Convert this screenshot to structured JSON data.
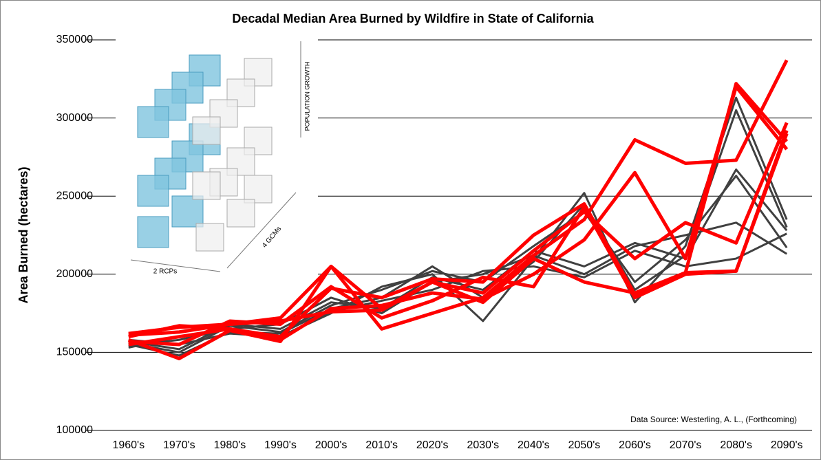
{
  "chart_data": {
    "type": "line",
    "title": "Decadal Median Area Burned by Wildfire in State of California",
    "y_label": "Area Burned (hectares)",
    "annotation": "Data Source: Westerling, A. L., (Forthcoming)",
    "inset_labels": [
      "POPULATION GROWTH",
      "2 RCPs",
      "4 GCMs"
    ],
    "categories": [
      "1960's",
      "1970's",
      "1980's",
      "1990's",
      "2000's",
      "2010's",
      "2020's",
      "2030's",
      "2040's",
      "2050's",
      "2060's",
      "2070's",
      "2080's",
      "2090's"
    ],
    "ylim": [
      100000,
      350000
    ],
    "yticks": [
      100000,
      150000,
      200000,
      250000,
      300000,
      350000
    ],
    "grid": true,
    "series": [
      {
        "color": "#404040",
        "values": [
          153000,
          160000,
          165000,
          160000,
          175000,
          192000,
          200000,
          170000,
          210000,
          252000,
          182000,
          218000,
          313000,
          235000
        ]
      },
      {
        "color": "#404040",
        "values": [
          155000,
          148000,
          163000,
          162000,
          178000,
          185000,
          205000,
          185000,
          208000,
          245000,
          190000,
          212000,
          305000,
          230000
        ]
      },
      {
        "color": "#404040",
        "values": [
          157000,
          152000,
          168000,
          165000,
          182000,
          178000,
          198000,
          190000,
          215000,
          205000,
          220000,
          210000,
          267000,
          228000
        ]
      },
      {
        "color": "#404040",
        "values": [
          154000,
          158000,
          165000,
          168000,
          185000,
          175000,
          195000,
          200000,
          212000,
          200000,
          218000,
          225000,
          233000,
          213000
        ]
      },
      {
        "color": "#404040",
        "values": [
          156000,
          150000,
          167000,
          163000,
          180000,
          190000,
          202000,
          195000,
          218000,
          240000,
          195000,
          222000,
          263000,
          217000
        ]
      },
      {
        "color": "#404040",
        "values": [
          158000,
          155000,
          162000,
          160000,
          176000,
          183000,
          190000,
          202000,
          205000,
          198000,
          215000,
          205000,
          210000,
          226000
        ]
      },
      {
        "color": "#ff0000",
        "values": [
          162000,
          166000,
          168000,
          172000,
          205000,
          165000,
          175000,
          185000,
          212000,
          235000,
          286000,
          271000,
          273000,
          337000
        ]
      },
      {
        "color": "#ff0000",
        "values": [
          158000,
          146000,
          164000,
          157000,
          205000,
          178000,
          195000,
          188000,
          215000,
          240000,
          210000,
          233000,
          220000,
          297000
        ]
      },
      {
        "color": "#ff0000",
        "values": [
          155000,
          160000,
          165000,
          160000,
          191000,
          185000,
          197000,
          195000,
          225000,
          245000,
          187000,
          201000,
          322000,
          285000
        ]
      },
      {
        "color": "#ff0000",
        "values": [
          160000,
          167000,
          165000,
          158000,
          178000,
          180000,
          188000,
          184000,
          200000,
          222000,
          265000,
          210000,
          320000,
          280000
        ]
      },
      {
        "color": "#ff0000",
        "values": [
          157000,
          155000,
          170000,
          168000,
          192000,
          172000,
          183000,
          198000,
          192000,
          243000,
          185000,
          200000,
          202000,
          292000
        ]
      },
      {
        "color": "#ff0000",
        "values": [
          161000,
          163000,
          168000,
          170000,
          176000,
          177000,
          195000,
          182000,
          210000,
          195000,
          188000,
          201000,
          202000,
          290000
        ]
      }
    ]
  }
}
